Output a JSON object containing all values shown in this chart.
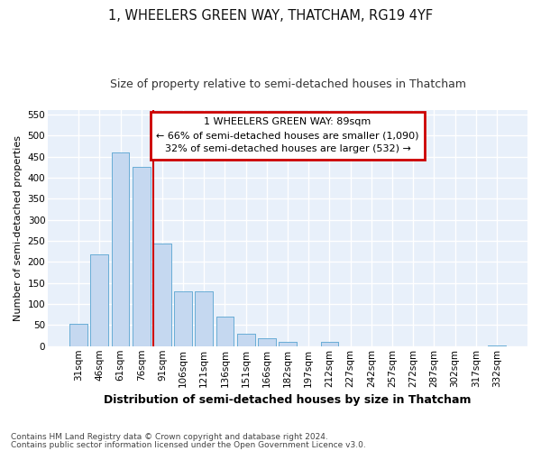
{
  "title1": "1, WHEELERS GREEN WAY, THATCHAM, RG19 4YF",
  "title2": "Size of property relative to semi-detached houses in Thatcham",
  "xlabel": "Distribution of semi-detached houses by size in Thatcham",
  "ylabel": "Number of semi-detached properties",
  "categories": [
    "31sqm",
    "46sqm",
    "61sqm",
    "76sqm",
    "91sqm",
    "106sqm",
    "121sqm",
    "136sqm",
    "151sqm",
    "166sqm",
    "182sqm",
    "197sqm",
    "212sqm",
    "227sqm",
    "242sqm",
    "257sqm",
    "272sqm",
    "287sqm",
    "302sqm",
    "317sqm",
    "332sqm"
  ],
  "values": [
    53,
    218,
    460,
    425,
    243,
    130,
    130,
    70,
    30,
    18,
    10,
    0,
    10,
    0,
    0,
    0,
    0,
    0,
    0,
    0,
    2
  ],
  "bar_color": "#c5d8f0",
  "bar_edge_color": "#6baed6",
  "property_line_x": 4.0,
  "annotation_title": "1 WHEELERS GREEN WAY: 89sqm",
  "annotation_line1": "← 66% of semi-detached houses are smaller (1,090)",
  "annotation_line2": "32% of semi-detached houses are larger (532) →",
  "annotation_box_color": "#ffffff",
  "annotation_box_edge": "#cc0000",
  "line_color": "#cc0000",
  "ylim": [
    0,
    560
  ],
  "yticks": [
    0,
    50,
    100,
    150,
    200,
    250,
    300,
    350,
    400,
    450,
    500,
    550
  ],
  "footnote1": "Contains HM Land Registry data © Crown copyright and database right 2024.",
  "footnote2": "Contains public sector information licensed under the Open Government Licence v3.0.",
  "background_color": "#e8f0fa",
  "grid_color": "#ffffff",
  "title1_fontsize": 10.5,
  "title2_fontsize": 9,
  "xlabel_fontsize": 9,
  "ylabel_fontsize": 8,
  "tick_fontsize": 7.5,
  "footnote_fontsize": 6.5,
  "annotation_fontsize": 8
}
